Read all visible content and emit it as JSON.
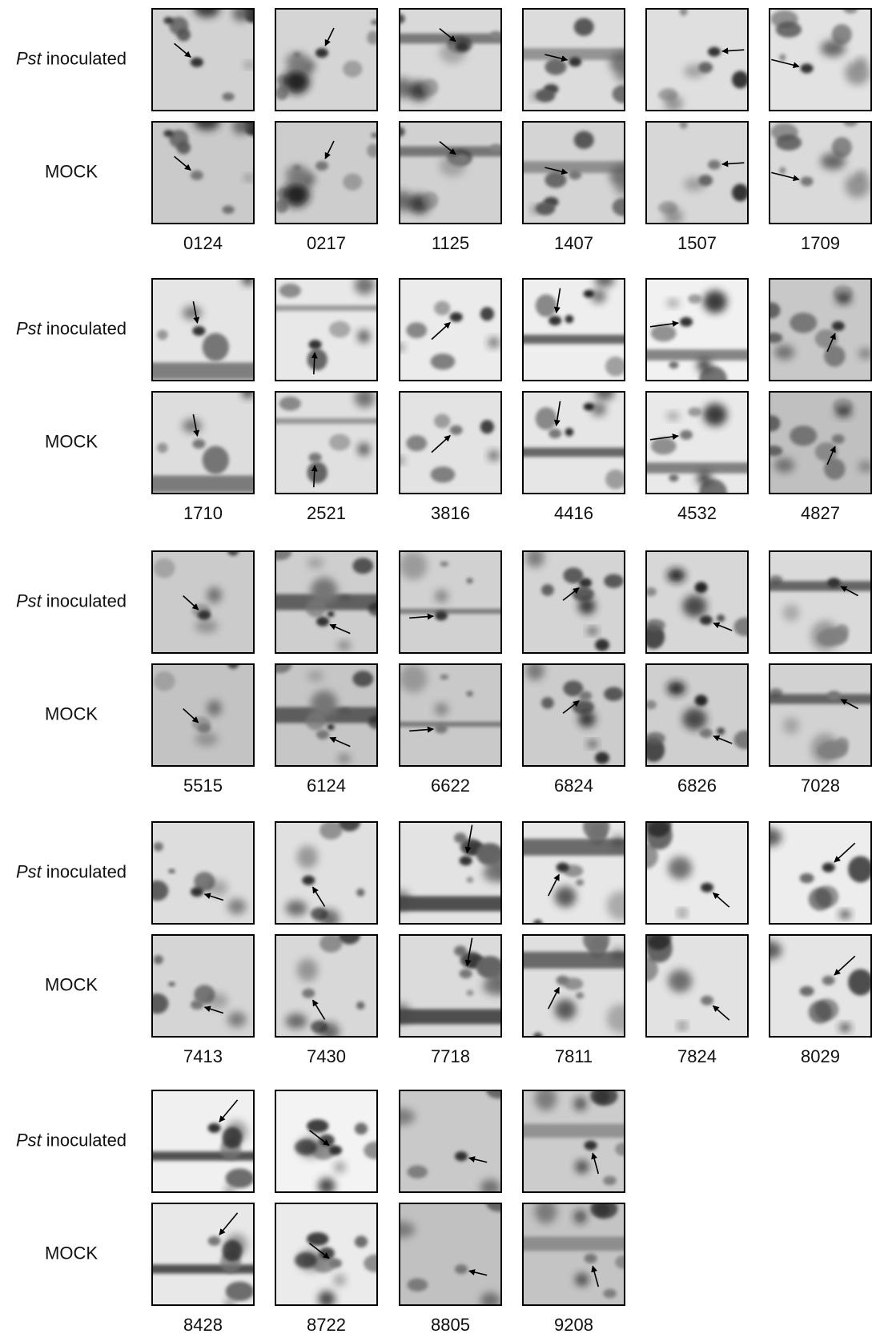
{
  "figure": {
    "blocks": [
      {
        "treated": {
          "species": "Pst",
          "label": "inoculated"
        },
        "mock": "MOCK",
        "spots": [
          "0124",
          "0217",
          "1125",
          "1407",
          "1507",
          "1709"
        ]
      },
      {
        "treated": {
          "species": "Pst",
          "label": "inoculated"
        },
        "mock": "MOCK",
        "spots": [
          "1710",
          "2521",
          "3816",
          "4416",
          "4532",
          "4827"
        ]
      },
      {
        "treated": {
          "species": "Pst",
          "label": "inoculated"
        },
        "mock": "MOCK",
        "spots": [
          "5515",
          "6124",
          "6622",
          "6824",
          "6826",
          "7028"
        ]
      },
      {
        "treated": {
          "species": "Pst",
          "label": "inoculated"
        },
        "mock": "MOCK",
        "spots": [
          "7413",
          "7430",
          "7718",
          "7811",
          "7824",
          "8029"
        ]
      },
      {
        "treated": {
          "species": "Pst",
          "label": "inoculated"
        },
        "mock": "MOCK",
        "spots": [
          "8428",
          "8722",
          "8805",
          "9208"
        ]
      }
    ]
  }
}
